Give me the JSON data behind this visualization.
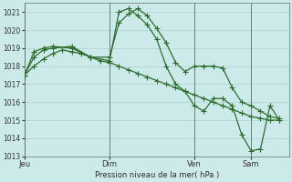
{
  "background_color": "#cdeaea",
  "grid_color": "#a8c8c8",
  "line_color": "#2d6e2d",
  "line_width": 0.9,
  "marker": "+",
  "marker_size": 4,
  "marker_edge_width": 0.8,
  "ylabel_text": "Pression niveau de la mer( hPa )",
  "ylim": [
    1013.0,
    1021.5
  ],
  "yticks": [
    1013,
    1014,
    1015,
    1016,
    1017,
    1018,
    1019,
    1020,
    1021
  ],
  "xtick_labels": [
    "Jeu",
    "Dim",
    "Ven",
    "Sam"
  ],
  "xtick_positions": [
    0,
    9,
    18,
    24
  ],
  "vline_positions": [
    0,
    9,
    18,
    24
  ],
  "xlim": [
    0,
    28
  ],
  "series1_x": [
    0,
    1,
    2,
    3,
    4,
    5,
    6,
    7,
    8,
    9,
    10,
    11,
    12,
    13,
    14,
    15,
    16,
    17,
    18,
    19,
    20,
    21,
    22,
    23,
    24,
    25,
    26,
    27
  ],
  "series1_y": [
    1017.5,
    1018.0,
    1018.4,
    1018.7,
    1018.9,
    1018.8,
    1018.7,
    1018.5,
    1018.3,
    1018.2,
    1018.0,
    1017.8,
    1017.6,
    1017.4,
    1017.2,
    1017.0,
    1016.8,
    1016.6,
    1016.4,
    1016.2,
    1016.0,
    1015.8,
    1015.6,
    1015.4,
    1015.2,
    1015.1,
    1015.0,
    1015.0
  ],
  "series2_x": [
    0,
    1,
    2,
    3,
    5,
    7,
    9,
    10,
    11,
    12,
    13,
    14,
    15,
    16,
    17,
    18,
    19,
    20,
    21,
    22,
    23,
    24,
    25,
    26,
    27
  ],
  "series2_y": [
    1017.5,
    1018.8,
    1019.0,
    1019.1,
    1019.0,
    1018.5,
    1018.5,
    1020.4,
    1020.9,
    1021.2,
    1020.8,
    1020.1,
    1019.3,
    1018.2,
    1017.7,
    1018.0,
    1018.0,
    1018.0,
    1017.9,
    1016.8,
    1016.0,
    1015.8,
    1015.5,
    1015.2,
    1015.1
  ],
  "series3_x": [
    0,
    1,
    2,
    3,
    5,
    7,
    9,
    10,
    11,
    12,
    13,
    14,
    15,
    16,
    17,
    18,
    19,
    20,
    21,
    22,
    23,
    24,
    25,
    26,
    27
  ],
  "series3_y": [
    1017.5,
    1018.5,
    1018.9,
    1019.0,
    1019.1,
    1018.5,
    1018.3,
    1021.0,
    1021.2,
    1020.8,
    1020.3,
    1019.5,
    1018.0,
    1017.0,
    1016.6,
    1015.8,
    1015.5,
    1016.2,
    1016.2,
    1015.8,
    1014.2,
    1013.3,
    1013.4,
    1015.8,
    1015.0
  ]
}
